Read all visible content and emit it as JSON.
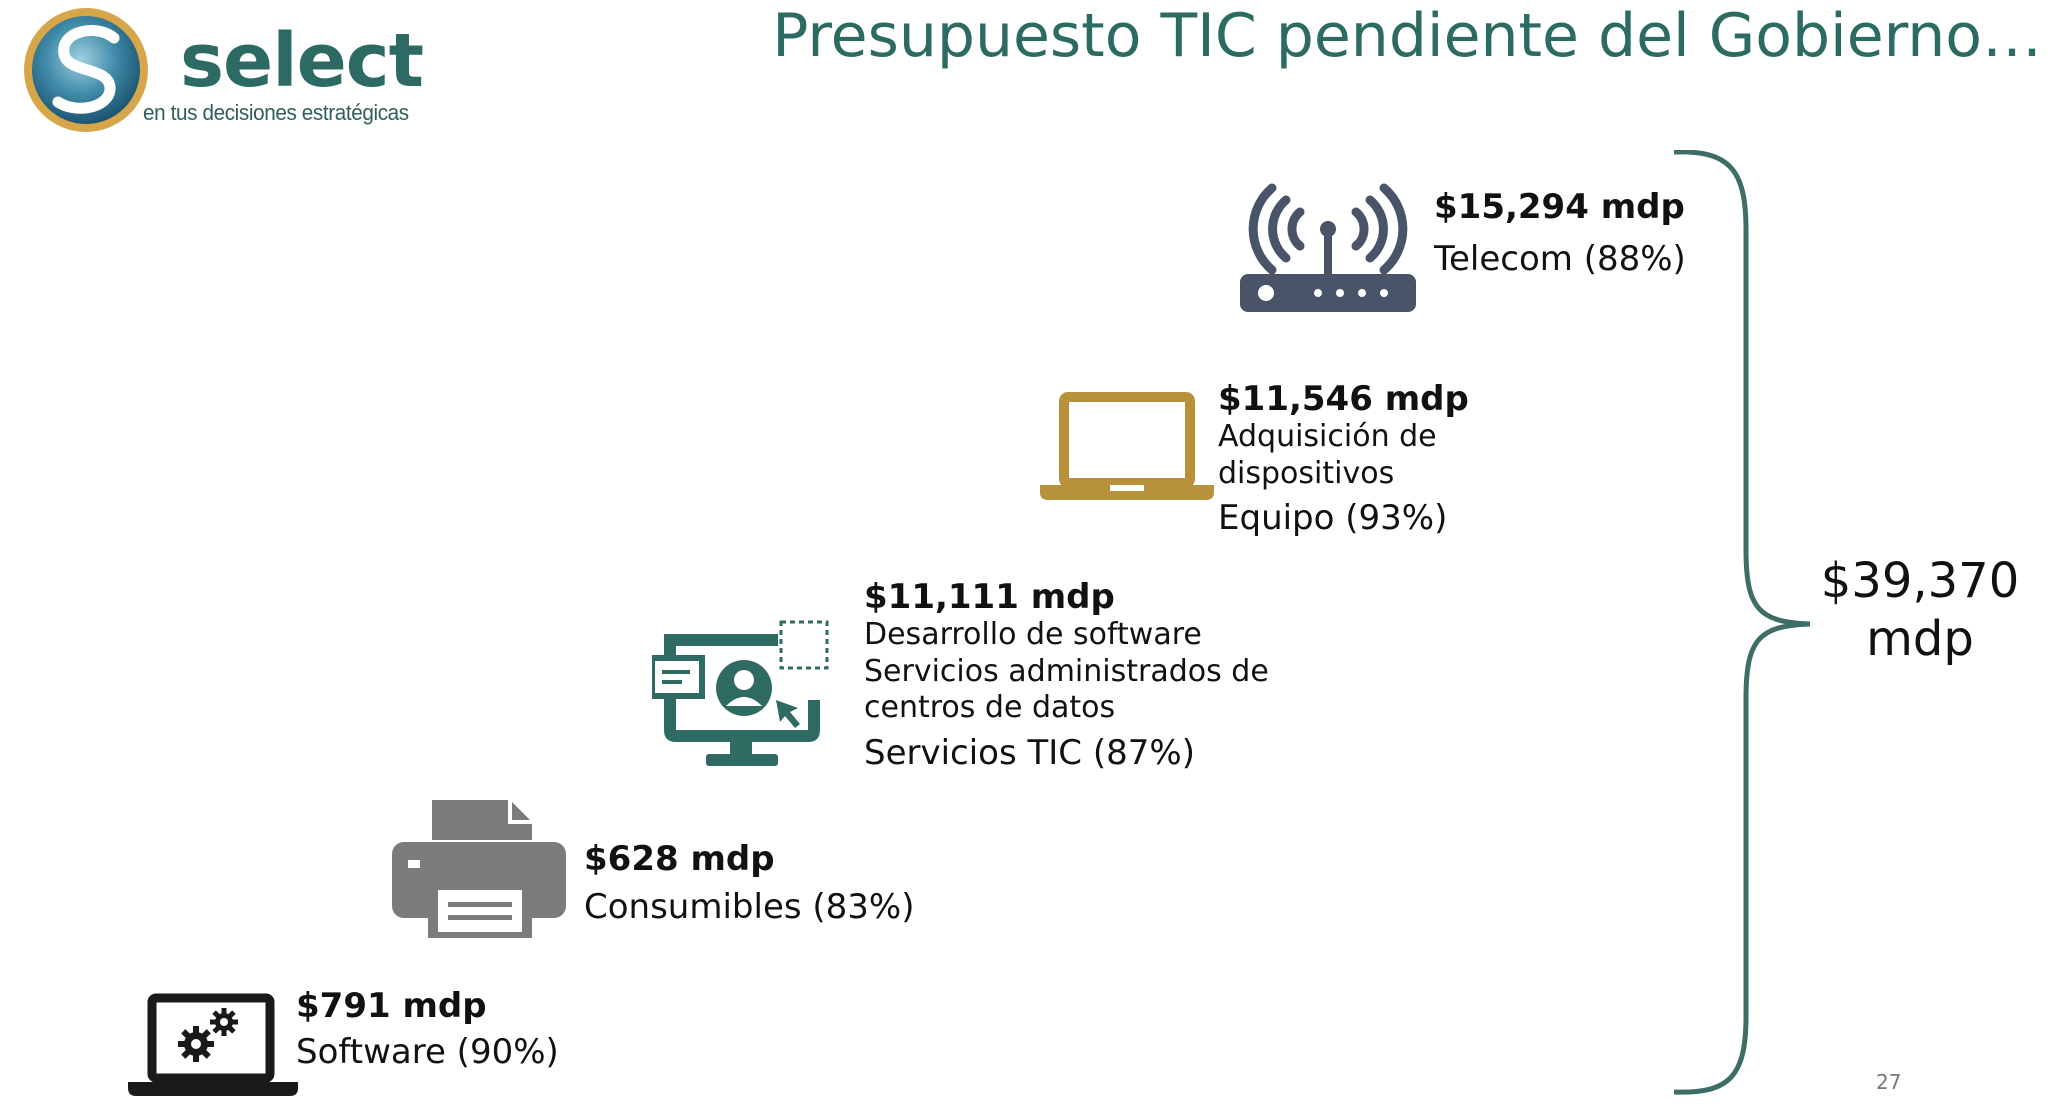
{
  "logo": {
    "brand": "select",
    "tagline": "en tus decisiones estratégicas"
  },
  "slide": {
    "title": "Presupuesto TIC pendiente del Gobierno…",
    "page_number": "27"
  },
  "items": [
    {
      "amount": "$15,294 mdp",
      "description": [],
      "category": "Telecom (88%)",
      "icon": "wifi-router-icon"
    },
    {
      "amount": "$11,546 mdp",
      "description": [
        "Adquisición de",
        "dispositivos"
      ],
      "category": "Equipo (93%)",
      "icon": "laptop-icon"
    },
    {
      "amount": "$11,111 mdp",
      "description": [
        "Desarrollo de software",
        "Servicios administrados de",
        "centros de datos"
      ],
      "category": "Servicios TIC (87%)",
      "icon": "monitor-user-icon"
    },
    {
      "amount": "$628 mdp",
      "description": [],
      "category": "Consumibles (83%)",
      "icon": "printer-icon"
    },
    {
      "amount": "$791 mdp",
      "description": [],
      "category": "Software (90%)",
      "icon": "laptop-gears-icon"
    }
  ],
  "total": {
    "line1": "$39,370",
    "line2": "mdp"
  },
  "colors": {
    "title": "#2b6b62",
    "brace": "#3d6e66",
    "router": "#4a5468",
    "laptop": "#b8923a",
    "monitor": "#2f6b63",
    "printer": "#7b7b7d",
    "laptop_gears": "#1a1a1a"
  }
}
